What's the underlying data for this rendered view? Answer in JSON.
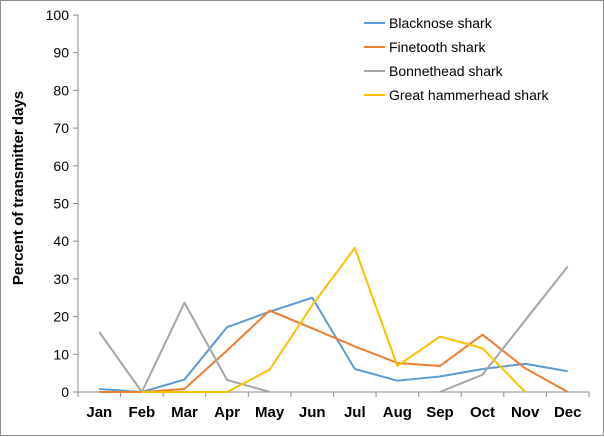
{
  "chart_data": {
    "type": "line",
    "title": "",
    "xlabel": "",
    "ylabel": "Percent of transmitter days",
    "ylim": [
      0,
      100
    ],
    "yticks": [
      0,
      10,
      20,
      30,
      40,
      50,
      60,
      70,
      80,
      90,
      100
    ],
    "grid": false,
    "legend_position": "top-right",
    "categories": [
      "Jan",
      "Feb",
      "Mar",
      "Apr",
      "May",
      "Jun",
      "Jul",
      "Aug",
      "Sep",
      "Oct",
      "Nov",
      "Dec"
    ],
    "series": [
      {
        "name": "Blacknose shark",
        "color": "#5b9bd5",
        "values": [
          0.8,
          0,
          3.3,
          17.2,
          21.3,
          25.0,
          6.1,
          3.0,
          4.1,
          6.1,
          7.5,
          5.5
        ]
      },
      {
        "name": "Finetooth shark",
        "color": "#ed7d31",
        "values": [
          0,
          0,
          0.8,
          11.0,
          21.6,
          16.9,
          12.1,
          7.7,
          6.9,
          15.2,
          6.3,
          0
        ]
      },
      {
        "name": "Bonnethead shark",
        "color": "#a5a5a5",
        "values": [
          15.9,
          0,
          23.7,
          3.2,
          0,
          null,
          null,
          null,
          0,
          4.6,
          19.0,
          33.3
        ]
      },
      {
        "name": "Great hammerhead shark",
        "color": "#ffc000",
        "values": [
          null,
          0,
          0,
          0,
          5.9,
          23.0,
          38.2,
          6.9,
          14.7,
          11.6,
          0,
          null
        ]
      }
    ]
  }
}
